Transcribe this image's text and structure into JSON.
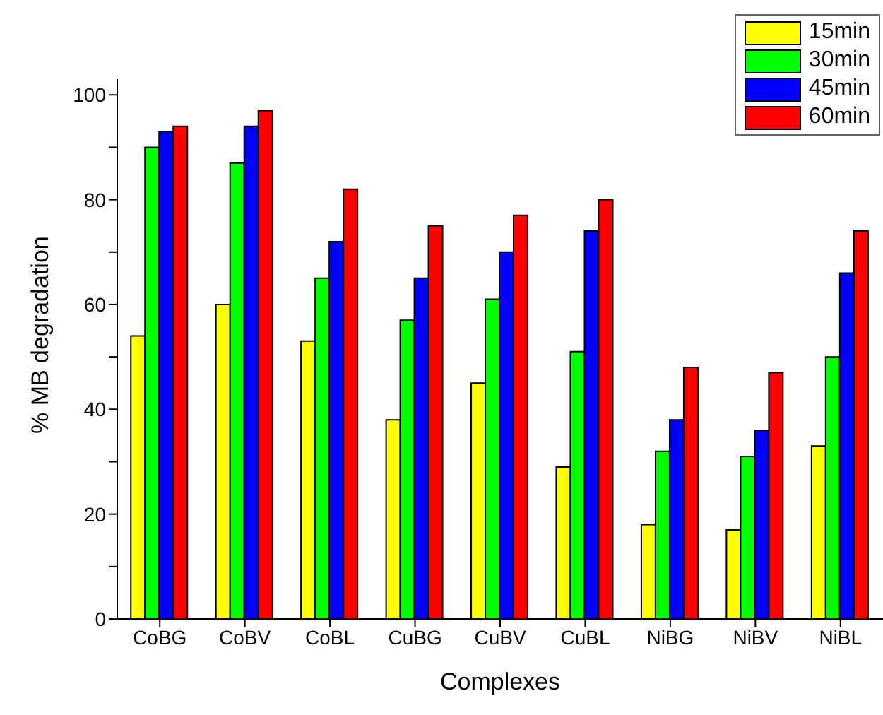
{
  "chart_data": {
    "type": "bar",
    "xlabel": "Complexes",
    "ylabel": "% MB degradation",
    "categories": [
      "CoBG",
      "CoBV",
      "CoBL",
      "CuBG",
      "CuBV",
      "CuBL",
      "NiBG",
      "NiBV",
      "NiBL"
    ],
    "series": [
      {
        "name": "15min",
        "color": "#ffff00",
        "values": [
          54,
          60,
          53,
          38,
          45,
          29,
          18,
          17,
          33
        ]
      },
      {
        "name": "30min",
        "color": "#00ff00",
        "values": [
          90,
          87,
          65,
          57,
          61,
          51,
          32,
          31,
          50
        ]
      },
      {
        "name": "45min",
        "color": "#0000ff",
        "values": [
          93,
          94,
          72,
          65,
          70,
          74,
          38,
          36,
          66
        ]
      },
      {
        "name": "60min",
        "color": "#ff0000",
        "values": [
          94,
          97,
          82,
          75,
          77,
          80,
          48,
          47,
          74
        ]
      }
    ],
    "ylim": [
      0,
      103
    ],
    "yticks": [
      0,
      {
        "value": 10,
        "label": null
      },
      20,
      {
        "value": 30,
        "label": null
      },
      40,
      {
        "value": 50,
        "label": null
      },
      60,
      {
        "value": 70,
        "label": null
      },
      80,
      {
        "value": 90,
        "label": null
      },
      100
    ],
    "grid": false,
    "legend": "top right"
  }
}
